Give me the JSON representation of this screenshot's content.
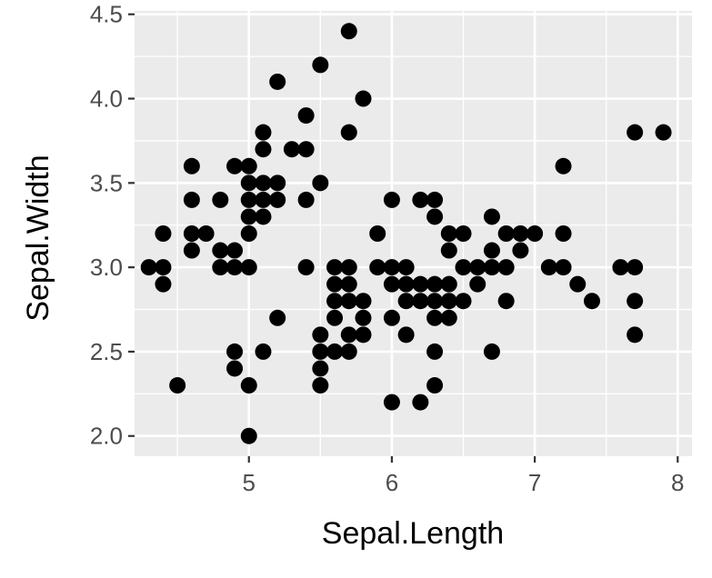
{
  "chart_data": {
    "type": "scatter",
    "title": "",
    "xlabel": "Sepal.Length",
    "ylabel": "Sepal.Width",
    "xlim": [
      4.2,
      8.1
    ],
    "ylim": [
      1.88,
      4.52
    ],
    "xticks": [
      5,
      6,
      7,
      8
    ],
    "xtick_labels": [
      "5",
      "6",
      "7",
      "8"
    ],
    "yticks": [
      2.0,
      2.5,
      3.0,
      3.5,
      4.0,
      4.5
    ],
    "ytick_labels": [
      "2.0",
      "2.5",
      "3.0",
      "3.5",
      "4.0",
      "4.5"
    ],
    "grid": true,
    "colors": {
      "panel_background": "#ebebeb",
      "grid_line": "#ffffff",
      "point": "#000000",
      "tick_text": "#4d4d4d",
      "axis_title": "#000000"
    },
    "points": [
      [
        4.3,
        3.0
      ],
      [
        4.4,
        2.9
      ],
      [
        4.4,
        3.0
      ],
      [
        4.4,
        3.2
      ],
      [
        4.5,
        2.3
      ],
      [
        4.6,
        3.1
      ],
      [
        4.6,
        3.2
      ],
      [
        4.6,
        3.4
      ],
      [
        4.6,
        3.6
      ],
      [
        4.7,
        3.2
      ],
      [
        4.8,
        3.0
      ],
      [
        4.8,
        3.1
      ],
      [
        4.8,
        3.4
      ],
      [
        4.9,
        2.4
      ],
      [
        4.9,
        2.5
      ],
      [
        4.9,
        3.0
      ],
      [
        4.9,
        3.1
      ],
      [
        4.9,
        3.6
      ],
      [
        5.0,
        2.0
      ],
      [
        5.0,
        2.3
      ],
      [
        5.0,
        3.0
      ],
      [
        5.0,
        3.2
      ],
      [
        5.0,
        3.3
      ],
      [
        5.0,
        3.4
      ],
      [
        5.0,
        3.5
      ],
      [
        5.0,
        3.6
      ],
      [
        5.1,
        2.5
      ],
      [
        5.1,
        3.3
      ],
      [
        5.1,
        3.4
      ],
      [
        5.1,
        3.5
      ],
      [
        5.1,
        3.7
      ],
      [
        5.1,
        3.8
      ],
      [
        5.2,
        2.7
      ],
      [
        5.2,
        3.4
      ],
      [
        5.2,
        3.5
      ],
      [
        5.2,
        4.1
      ],
      [
        5.3,
        3.7
      ],
      [
        5.4,
        3.0
      ],
      [
        5.4,
        3.4
      ],
      [
        5.4,
        3.7
      ],
      [
        5.4,
        3.9
      ],
      [
        5.5,
        2.3
      ],
      [
        5.5,
        2.4
      ],
      [
        5.5,
        2.5
      ],
      [
        5.5,
        2.6
      ],
      [
        5.5,
        3.5
      ],
      [
        5.5,
        4.2
      ],
      [
        5.6,
        2.5
      ],
      [
        5.6,
        2.7
      ],
      [
        5.6,
        2.8
      ],
      [
        5.6,
        2.9
      ],
      [
        5.6,
        3.0
      ],
      [
        5.7,
        2.5
      ],
      [
        5.7,
        2.6
      ],
      [
        5.7,
        2.8
      ],
      [
        5.7,
        2.9
      ],
      [
        5.7,
        3.0
      ],
      [
        5.7,
        3.8
      ],
      [
        5.7,
        4.4
      ],
      [
        5.8,
        2.6
      ],
      [
        5.8,
        2.7
      ],
      [
        5.8,
        2.8
      ],
      [
        5.8,
        4.0
      ],
      [
        5.9,
        3.0
      ],
      [
        5.9,
        3.2
      ],
      [
        6.0,
        2.2
      ],
      [
        6.0,
        2.7
      ],
      [
        6.0,
        2.9
      ],
      [
        6.0,
        3.0
      ],
      [
        6.0,
        3.4
      ],
      [
        6.1,
        2.6
      ],
      [
        6.1,
        2.8
      ],
      [
        6.1,
        2.9
      ],
      [
        6.1,
        3.0
      ],
      [
        6.2,
        2.2
      ],
      [
        6.2,
        2.8
      ],
      [
        6.2,
        2.9
      ],
      [
        6.2,
        3.4
      ],
      [
        6.3,
        2.3
      ],
      [
        6.3,
        2.5
      ],
      [
        6.3,
        2.7
      ],
      [
        6.3,
        2.8
      ],
      [
        6.3,
        2.9
      ],
      [
        6.3,
        3.3
      ],
      [
        6.3,
        3.4
      ],
      [
        6.4,
        2.7
      ],
      [
        6.4,
        2.8
      ],
      [
        6.4,
        2.9
      ],
      [
        6.4,
        3.1
      ],
      [
        6.4,
        3.2
      ],
      [
        6.5,
        2.8
      ],
      [
        6.5,
        3.0
      ],
      [
        6.5,
        3.2
      ],
      [
        6.6,
        2.9
      ],
      [
        6.6,
        3.0
      ],
      [
        6.7,
        2.5
      ],
      [
        6.7,
        3.0
      ],
      [
        6.7,
        3.1
      ],
      [
        6.7,
        3.3
      ],
      [
        6.8,
        2.8
      ],
      [
        6.8,
        3.0
      ],
      [
        6.8,
        3.2
      ],
      [
        6.9,
        3.1
      ],
      [
        6.9,
        3.2
      ],
      [
        7.0,
        3.2
      ],
      [
        7.1,
        3.0
      ],
      [
        7.2,
        3.0
      ],
      [
        7.2,
        3.2
      ],
      [
        7.2,
        3.6
      ],
      [
        7.3,
        2.9
      ],
      [
        7.4,
        2.8
      ],
      [
        7.6,
        3.0
      ],
      [
        7.7,
        2.6
      ],
      [
        7.7,
        2.8
      ],
      [
        7.7,
        3.0
      ],
      [
        7.7,
        3.8
      ],
      [
        7.9,
        3.8
      ]
    ]
  }
}
